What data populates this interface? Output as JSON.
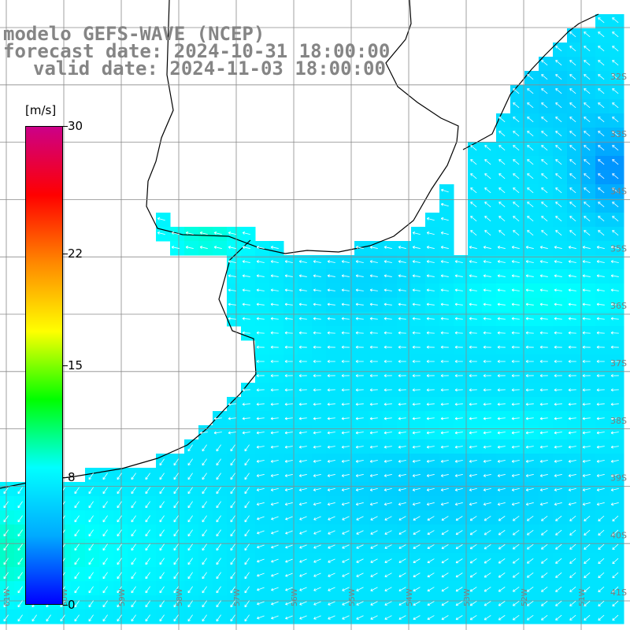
{
  "title": {
    "line1": "modelo GEFS-WAVE (NCEP)",
    "line2": "forecast date: 2024-10-31 18:00:00",
    "line3": "valid date: 2024-11-03 18:00:00"
  },
  "colorbar": {
    "unit": "[m/s]",
    "ticks": [
      {
        "label": "30",
        "value": 30
      },
      {
        "label": "22",
        "value": 22
      },
      {
        "label": "15",
        "value": 15
      },
      {
        "label": "8",
        "value": 8
      },
      {
        "label": "0",
        "value": 0
      }
    ],
    "colors": [
      "#0000ff",
      "#00aaff",
      "#00ffff",
      "#00ff00",
      "#ffff00",
      "#ff8800",
      "#ff0000",
      "#cc0088"
    ]
  },
  "map": {
    "land_color": "#ffffff",
    "grid_color": "#8a8a8a",
    "coast_color": "#000000",
    "arrow_color": "#ffffff",
    "lat_labels": [
      "32S",
      "33S",
      "34S",
      "35S",
      "36S",
      "37S",
      "38S",
      "39S",
      "40S",
      "41S"
    ],
    "lon_labels": [
      "61W",
      "60W",
      "59W",
      "58W",
      "57W",
      "56W",
      "55W",
      "54W",
      "53W",
      "52W",
      "51W"
    ]
  }
}
